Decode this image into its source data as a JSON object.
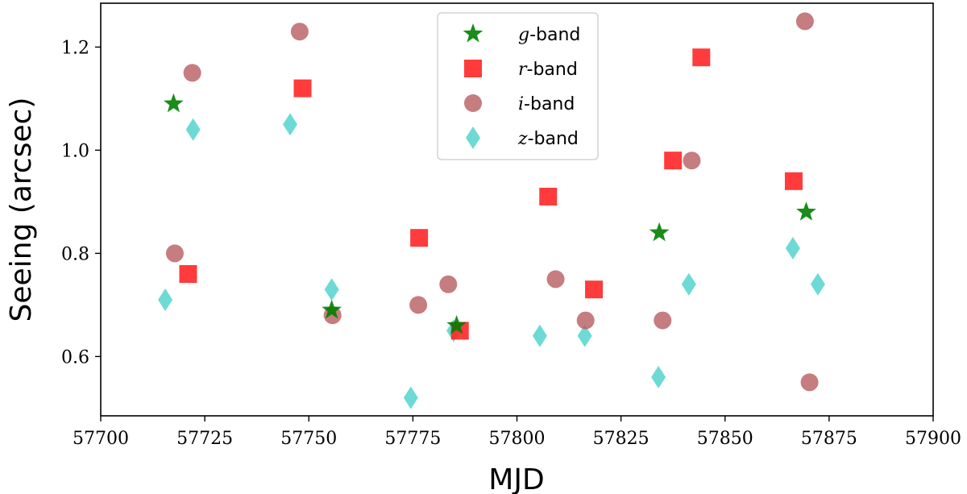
{
  "chart_data": {
    "type": "scatter",
    "title": "",
    "xlabel": "MJD",
    "ylabel": "Seeing (arcsec)",
    "xlim": [
      57700,
      57900
    ],
    "ylim": [
      0.485,
      1.285
    ],
    "xticks": [
      57700,
      57725,
      57750,
      57775,
      57800,
      57825,
      57850,
      57875,
      57900
    ],
    "yticks": [
      0.6,
      0.8,
      1.0,
      1.2
    ],
    "xtick_labels": [
      "57700",
      "57725",
      "57750",
      "57775",
      "57800",
      "57825",
      "57850",
      "57875",
      "57900"
    ],
    "ytick_labels": [
      "0.6",
      "0.8",
      "1.0",
      "1.2"
    ],
    "legend_position": "top-center",
    "series": [
      {
        "name": "g-band",
        "band": "g",
        "suffix": "-band",
        "marker": "star",
        "color": "#008000",
        "opacity": 0.9,
        "points": [
          [
            57717.5,
            1.09
          ],
          [
            57755.5,
            0.69
          ],
          [
            57785.5,
            0.66
          ],
          [
            57834.2,
            0.84
          ],
          [
            57869.5,
            0.88
          ]
        ]
      },
      {
        "name": "r-band",
        "band": "r",
        "suffix": "-band",
        "marker": "square",
        "color": "#ff2020",
        "opacity": 0.88,
        "points": [
          [
            57721.0,
            0.76
          ],
          [
            57748.5,
            1.12
          ],
          [
            57776.5,
            0.83
          ],
          [
            57786.3,
            0.65
          ],
          [
            57807.5,
            0.91
          ],
          [
            57818.5,
            0.73
          ],
          [
            57837.5,
            0.98
          ],
          [
            57844.3,
            1.18
          ],
          [
            57866.5,
            0.94
          ]
        ]
      },
      {
        "name": "i-band",
        "band": "i",
        "suffix": "-band",
        "marker": "circle",
        "color": "#b85c60",
        "opacity": 0.8,
        "points": [
          [
            57717.8,
            0.8
          ],
          [
            57722.0,
            1.15
          ],
          [
            57747.8,
            1.23
          ],
          [
            57755.7,
            0.68
          ],
          [
            57776.3,
            0.7
          ],
          [
            57783.5,
            0.74
          ],
          [
            57809.3,
            0.75
          ],
          [
            57816.5,
            0.67
          ],
          [
            57835.0,
            0.67
          ],
          [
            57842.0,
            0.98
          ],
          [
            57869.2,
            1.25
          ],
          [
            57870.3,
            0.55
          ]
        ]
      },
      {
        "name": "z-band",
        "band": "z",
        "suffix": "-band",
        "marker": "diamond",
        "color": "#48d1cc",
        "opacity": 0.8,
        "points": [
          [
            57715.5,
            0.71
          ],
          [
            57722.2,
            1.04
          ],
          [
            57745.5,
            1.05
          ],
          [
            57755.5,
            0.73
          ],
          [
            57774.5,
            0.52
          ],
          [
            57784.8,
            0.65
          ],
          [
            57805.5,
            0.64
          ],
          [
            57816.3,
            0.64
          ],
          [
            57834.0,
            0.56
          ],
          [
            57841.3,
            0.74
          ],
          [
            57866.3,
            0.81
          ],
          [
            57872.3,
            0.74
          ]
        ]
      }
    ]
  }
}
